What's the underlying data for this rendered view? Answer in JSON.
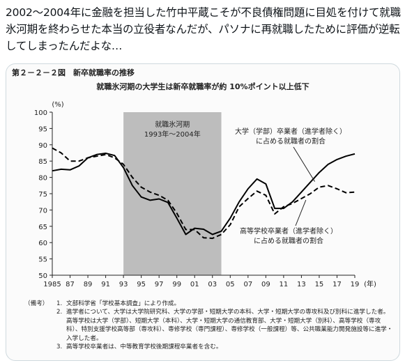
{
  "tweet": {
    "text": "2002〜2004年に金融を担当した竹中平蔵こそが不良債権問題に目処を付けて就職氷河期を終わらせた本当の立役者なんだが、パソナに再就職したために評価が逆転してしまったんだよな…"
  },
  "figure": {
    "label": "第２－２－２図　新卒就職率の推移",
    "notes": [
      {
        "head": "（備考）",
        "num": "1.",
        "text": "文部科学省「学校基本調査」により作成。"
      },
      {
        "head": "",
        "num": "2.",
        "text": "進学者について、大学は大学院研究科、大学の学部・短期大学の本科、大学・短期大学の専攻科及び別科に進学した者。高等学校は大学（学部）、短期大学（本科）、大学・短期大学の通信教育部、大学・短期大学（別科）、高等学校（専攻科）、特別支援学校高等部（専攻科）、専修学校（専門課程）、専修学校（一般課程）等、公共職業能力開発施設等に進学・入学した者。"
      },
      {
        "head": "",
        "num": "3.",
        "text": "高等学校卒業者は、中等教育学校後期課程卒業者を含む。"
      }
    ]
  },
  "chart_data": {
    "type": "line",
    "title": "就職氷河期の大学生は新卒就職率が約 10%ポイント以上低下",
    "ylabel": "(%)",
    "xlabel": "(年)",
    "ylim": [
      50,
      100
    ],
    "xlim": [
      1985,
      2019
    ],
    "y_ticks": [
      "50",
      "55",
      "60",
      "65",
      "70",
      "75",
      "80",
      "85",
      "90",
      "95",
      "100"
    ],
    "x_ticks": [
      "1985",
      "87",
      "89",
      "91",
      "93",
      "95",
      "97",
      "99",
      "01",
      "03",
      "05",
      "07",
      "09",
      "11",
      "13",
      "15",
      "17",
      "19"
    ],
    "x_tick_years": [
      1985,
      1987,
      1989,
      1991,
      1993,
      1995,
      1997,
      1999,
      2001,
      2003,
      2005,
      2007,
      2009,
      2011,
      2013,
      2015,
      2017,
      2019
    ],
    "shaded_region": {
      "from": 1993,
      "to": 2004,
      "label_line1": "就職氷河期",
      "label_line2": "1993年〜2004年",
      "color": "#bdbdbd"
    },
    "x": [
      1985,
      1986,
      1987,
      1988,
      1989,
      1990,
      1991,
      1992,
      1993,
      1994,
      1995,
      1996,
      1997,
      1998,
      1999,
      2000,
      2001,
      2002,
      2003,
      2004,
      2005,
      2006,
      2007,
      2008,
      2009,
      2010,
      2011,
      2012,
      2013,
      2014,
      2015,
      2016,
      2017,
      2018,
      2019
    ],
    "series": [
      {
        "name": "大学（学部）卒業者（進学者除く）に占める就職者の割合",
        "style": "solid",
        "values": [
          82.0,
          82.5,
          82.3,
          83.5,
          86.0,
          87.0,
          87.4,
          86.7,
          83.0,
          77.5,
          74.0,
          73.0,
          73.4,
          72.3,
          67.5,
          62.5,
          64.4,
          64.1,
          62.5,
          63.5,
          67.5,
          72.5,
          76.5,
          79.5,
          78.0,
          70.5,
          70.5,
          72.5,
          75.5,
          78.5,
          81.5,
          84.0,
          85.5,
          86.5,
          87.2
        ]
      },
      {
        "name": "高等学校卒業者（進学者除く）に占める就職者の割合",
        "style": "dashed",
        "values": [
          89.0,
          87.5,
          85.0,
          85.0,
          86.0,
          86.5,
          87.0,
          86.0,
          84.0,
          80.0,
          77.0,
          75.5,
          74.5,
          73.0,
          69.0,
          64.0,
          64.0,
          61.5,
          61.3,
          62.5,
          65.5,
          71.0,
          73.5,
          75.8,
          74.5,
          68.8,
          71.0,
          72.0,
          73.5,
          75.0,
          77.0,
          77.5,
          76.5,
          75.3,
          75.5
        ]
      }
    ],
    "annotations": [
      {
        "series": 0,
        "line1": "大学（学部）卒業者（進学者除く）",
        "line2": "に占める就職者の割合"
      },
      {
        "series": 1,
        "line1": "高等学校卒業者（進学者除く）",
        "line2": "に占める就職者の割合"
      }
    ],
    "grid": false,
    "colors": {
      "line": "#000000",
      "shade": "#bdbdbd",
      "background": "#fbfbfb"
    }
  }
}
